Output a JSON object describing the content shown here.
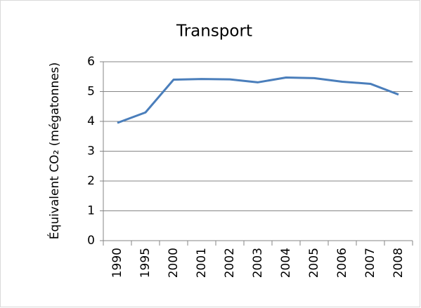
{
  "chart_data": {
    "type": "line",
    "title": "Transport",
    "y_label": "Équivalent CO₂ (mégatonnes)",
    "categories": [
      "1990",
      "1995",
      "2000",
      "2001",
      "2002",
      "2003",
      "2004",
      "2005",
      "2006",
      "2007",
      "2008"
    ],
    "values": [
      3.95,
      4.3,
      5.4,
      5.42,
      5.41,
      5.31,
      5.47,
      5.45,
      5.33,
      5.26,
      4.9
    ],
    "color": "#4a7ebb",
    "ylim": [
      0,
      6
    ],
    "yticks": [
      0,
      1,
      2,
      3,
      4,
      5,
      6
    ],
    "grid": true
  }
}
